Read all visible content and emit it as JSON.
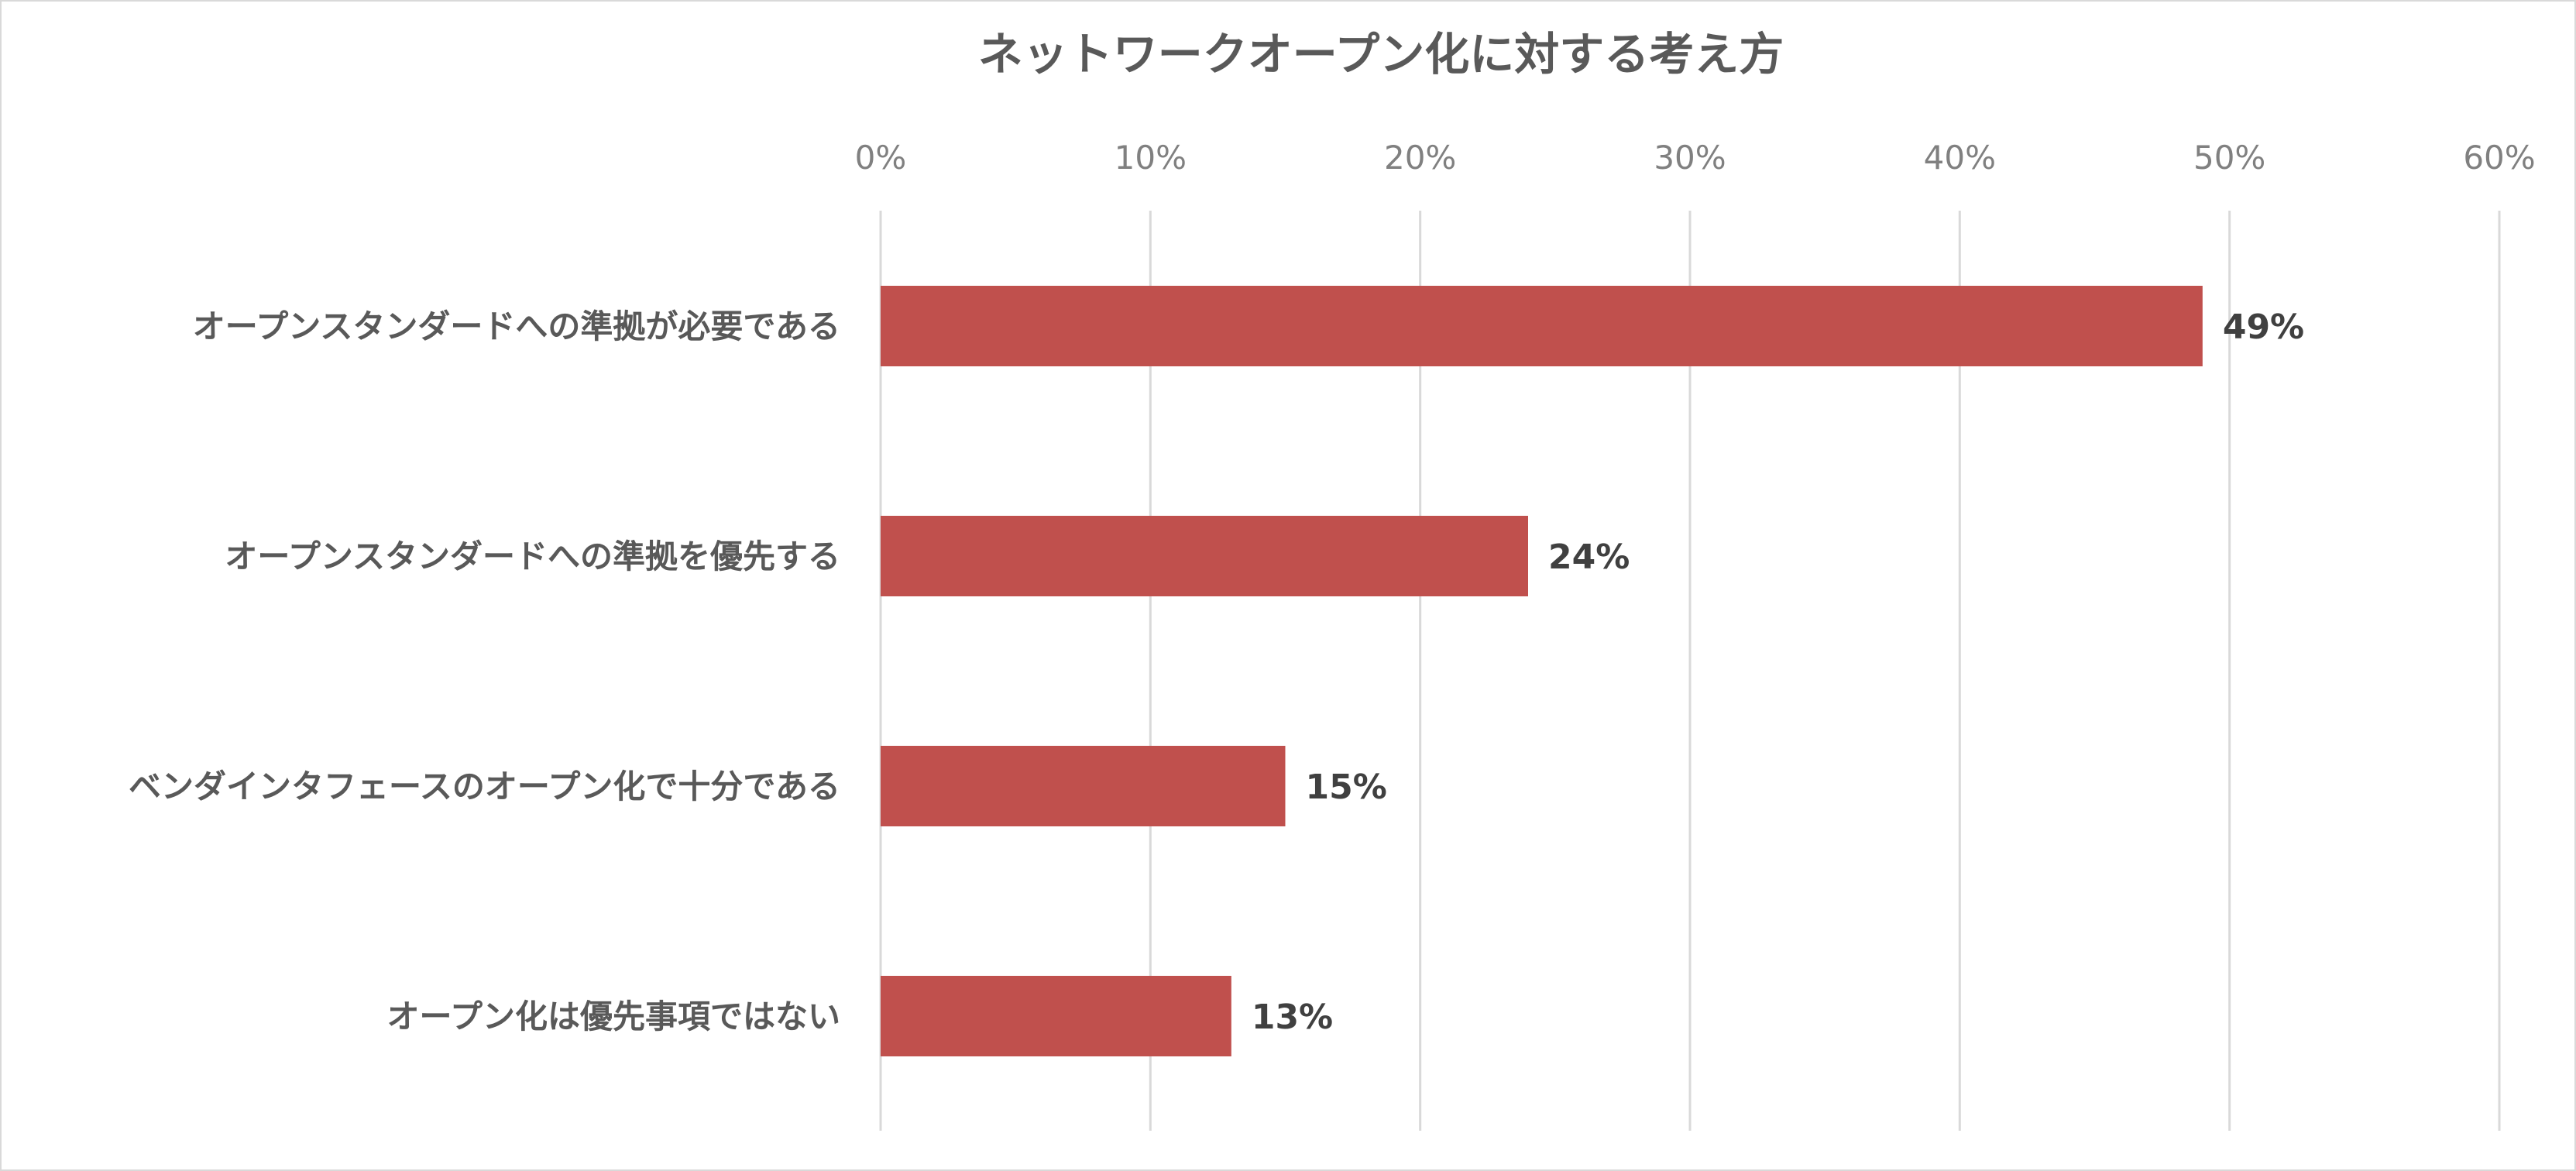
{
  "chart_data": {
    "type": "bar",
    "orientation": "horizontal",
    "title": "ネットワークオープン化に対する考え方",
    "categories": [
      "オープンスタンダードへの準拠が必要である",
      "オープンスタンダードへの準拠を優先する",
      "ベンダインタフェースのオープン化で十分である",
      "オープン化は優先事項ではない"
    ],
    "values": [
      49,
      24,
      15,
      13
    ],
    "data_labels": [
      "49%",
      "24%",
      "15%",
      "13%"
    ],
    "xlim": [
      0,
      60
    ],
    "x_ticks": [
      0,
      10,
      20,
      30,
      40,
      50,
      60
    ],
    "x_tick_labels": [
      "0%",
      "10%",
      "20%",
      "30%",
      "40%",
      "50%",
      "60%"
    ],
    "x_axis_position": "top",
    "xlabel": "",
    "ylabel": "",
    "grid": true,
    "legend": "none",
    "bar_color": "#C0504D"
  }
}
